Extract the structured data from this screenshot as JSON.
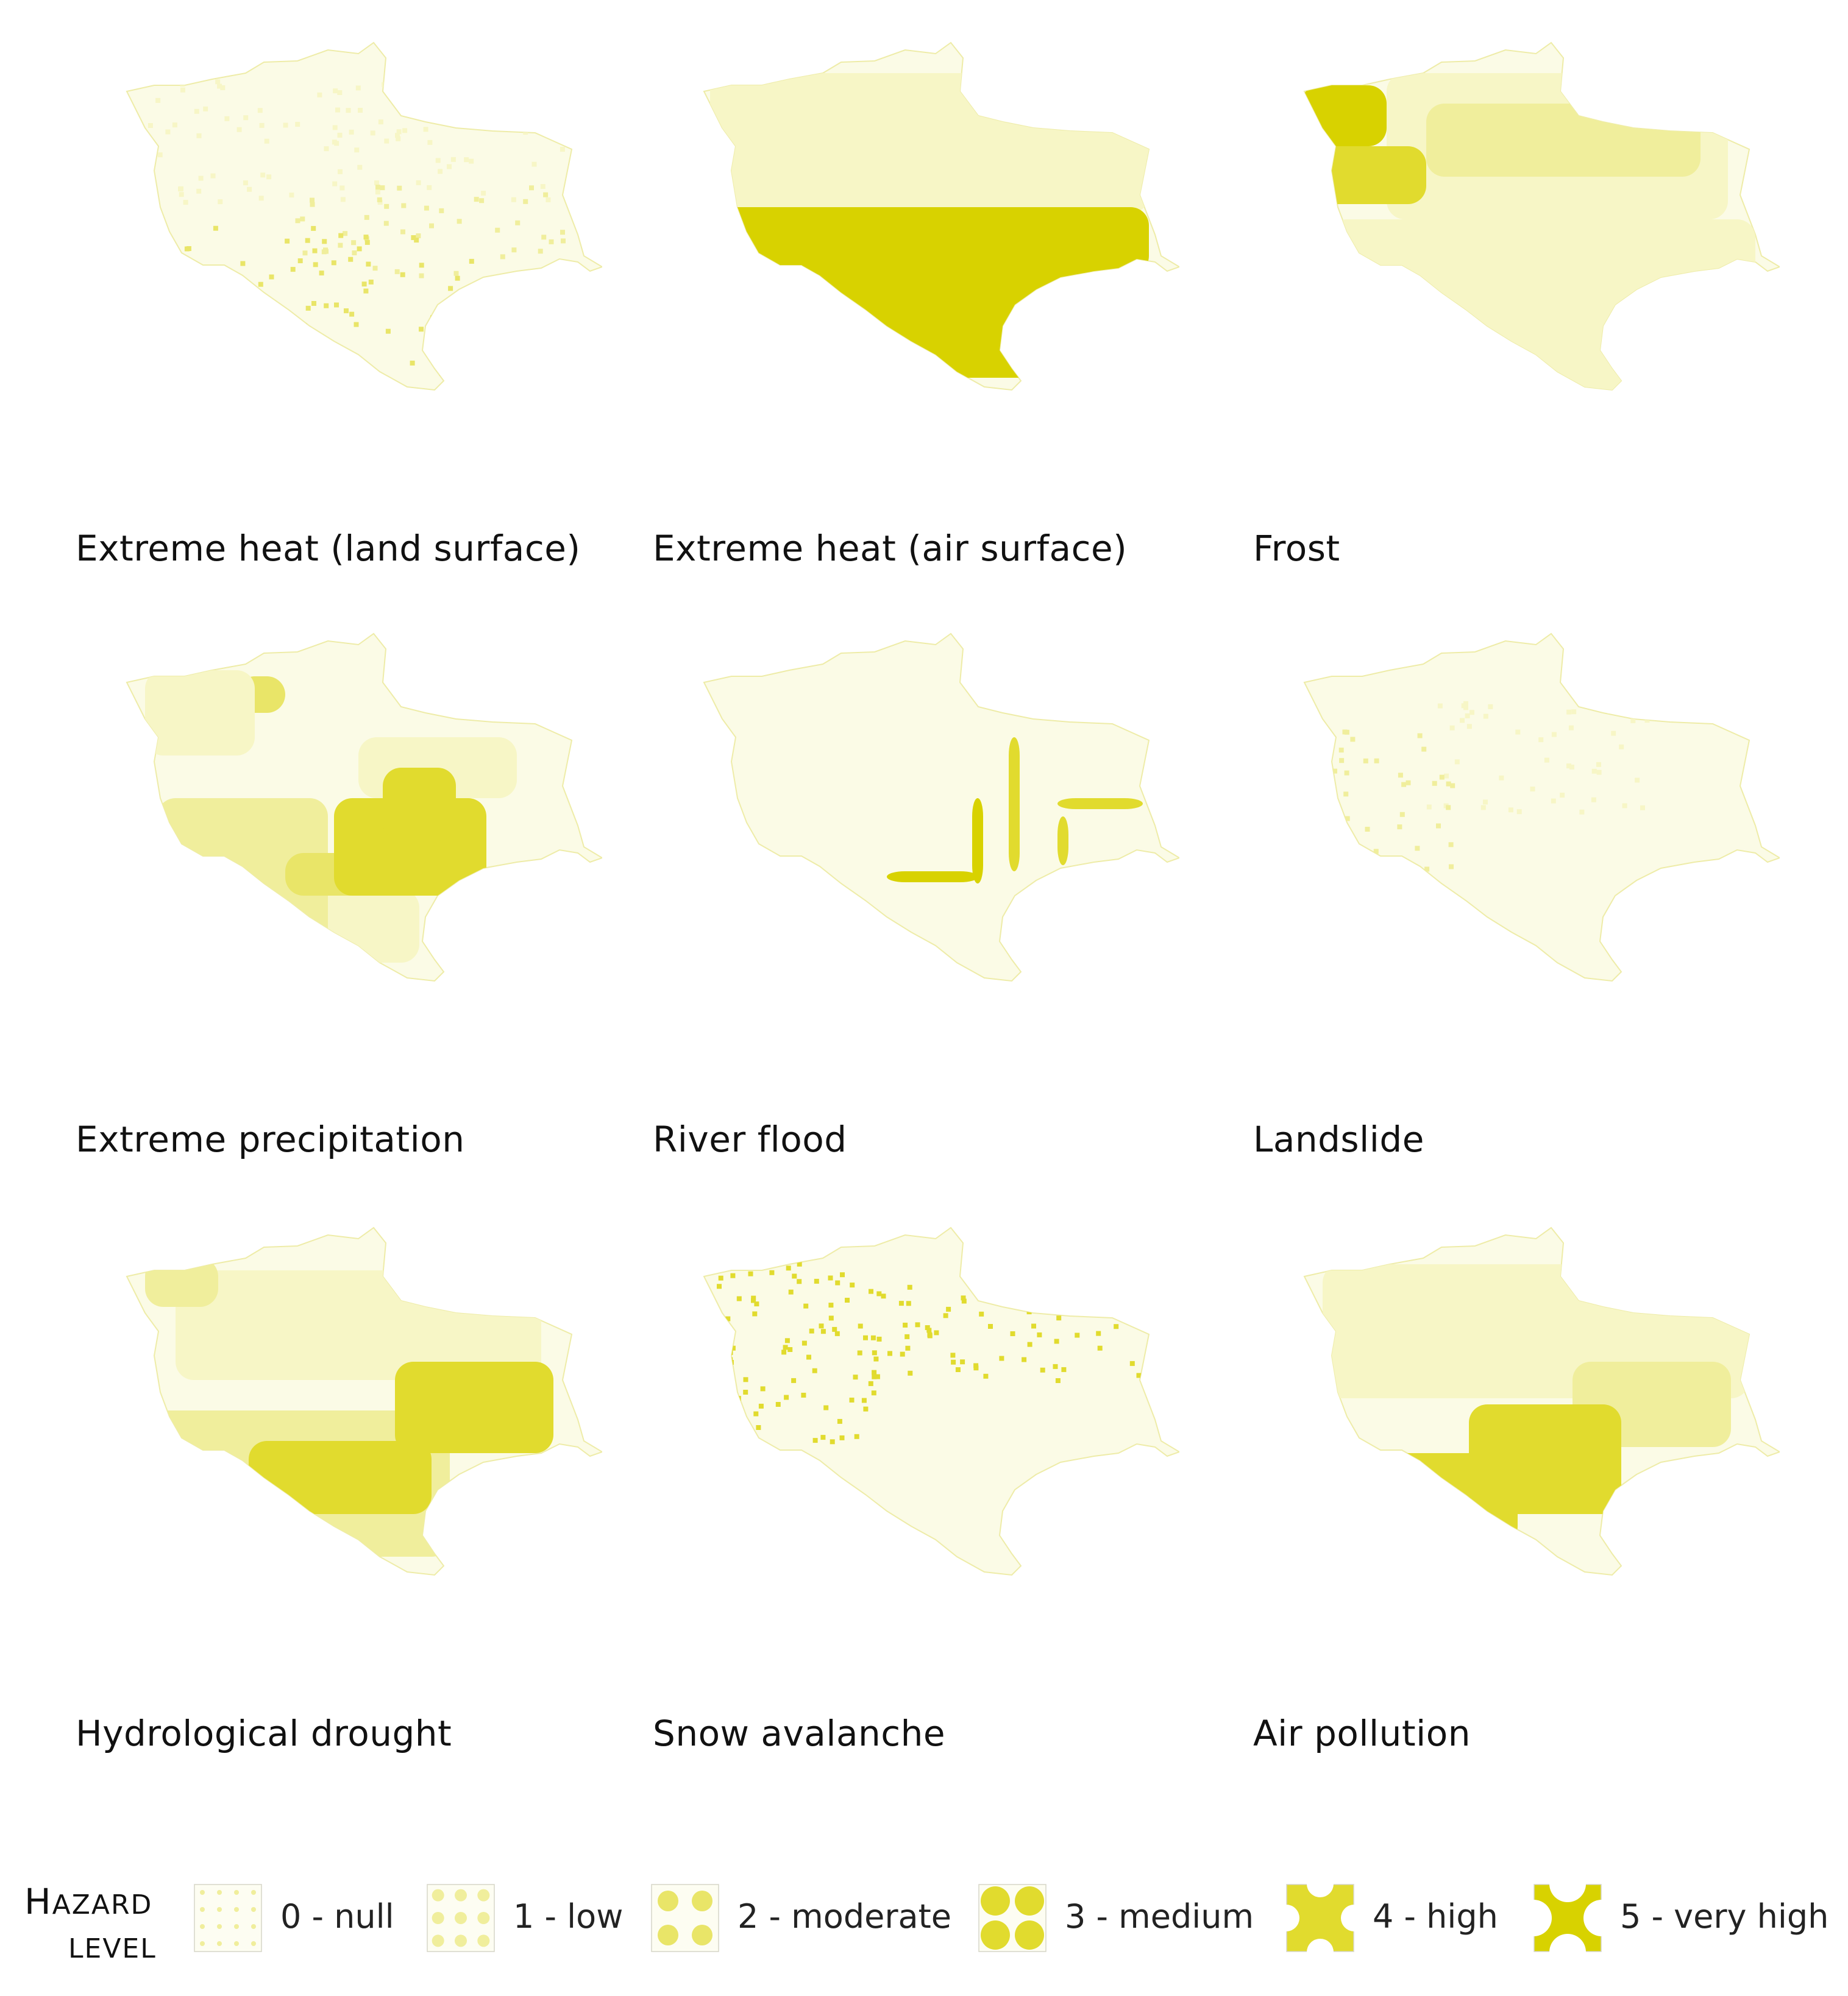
{
  "colors": {
    "level_0": "#fbfbe6",
    "level_1": "#f7f6c6",
    "level_2": "#f0ee9c",
    "level_3": "#e9e568",
    "level_4": "#e1db2e",
    "level_5": "#d8d200",
    "outline": "#eeeca8"
  },
  "maps": [
    {
      "title": "Extreme heat (land surface)",
      "pattern": "speckle-south"
    },
    {
      "title": "Extreme heat (air surface)",
      "pattern": "plain-band"
    },
    {
      "title": "Frost",
      "pattern": "alpine-blocks"
    },
    {
      "title": "Extreme precipitation",
      "pattern": "coarse-blocks"
    },
    {
      "title": "River flood",
      "pattern": "river-lines"
    },
    {
      "title": "Landslide",
      "pattern": "sparse-west"
    },
    {
      "title": "Hydrological drought",
      "pattern": "smooth-east"
    },
    {
      "title": "Snow avalanche",
      "pattern": "sparse-north"
    },
    {
      "title": "Air pollution",
      "pattern": "southwest-blob"
    }
  ],
  "legend": {
    "title_line1": "Hazard",
    "title_line2": "level",
    "items": [
      {
        "label": "0 - null",
        "level": 0
      },
      {
        "label": "1 - low",
        "level": 1
      },
      {
        "label": "2 - moderate",
        "level": 2
      },
      {
        "label": "3 - medium",
        "level": 3
      },
      {
        "label": "4 - high",
        "level": 4
      },
      {
        "label": "5 - very high",
        "level": 5
      }
    ]
  }
}
